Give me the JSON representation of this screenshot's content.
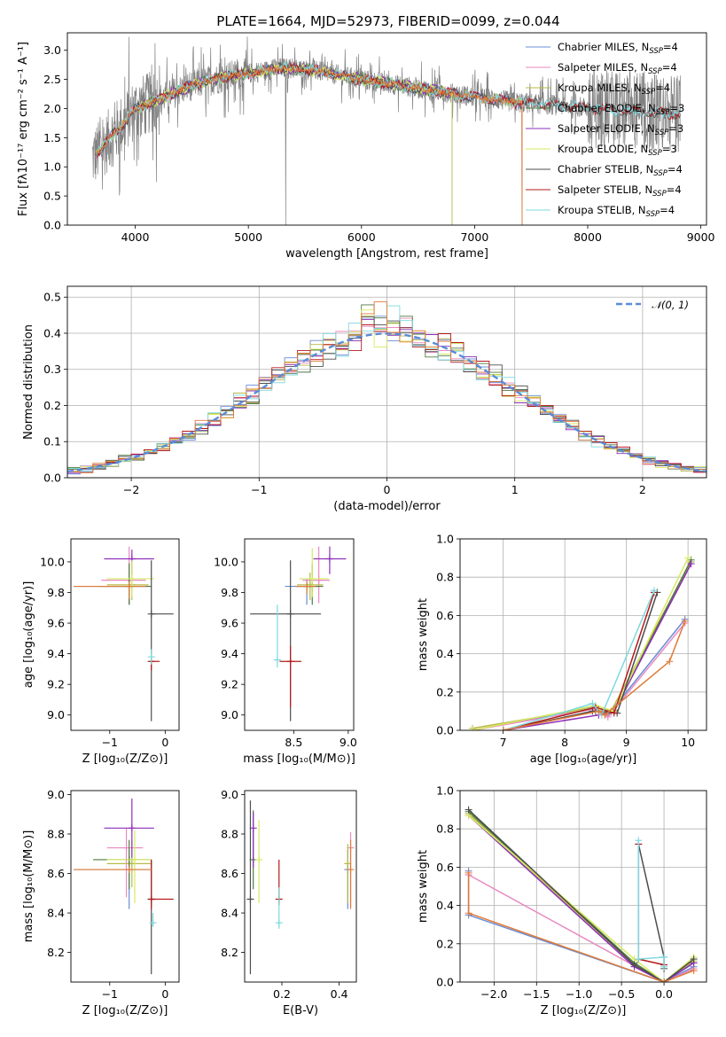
{
  "title": "PLATE=1664, MJD=52973, FIBERID=0099, z=0.044",
  "colors": {
    "chabrier_miles": "#6a8cd6",
    "salpeter_miles": "#e98ac1",
    "kroupa_miles": "#b9b94a",
    "chabrier_elodie": "#4f7a3f",
    "salpeter_elodie": "#8e2fb8",
    "kroupa_elodie": "#d6ea5f",
    "chabrier_stelib": "#4d4d4d",
    "salpeter_stelib": "#b31b1b",
    "kroupa_stelib": "#7fd8df",
    "data": "#808080",
    "orange": "#e07b39",
    "normal": "#5b8bd6"
  },
  "chart_data": [
    {
      "id": "spectrum",
      "type": "line",
      "xlabel": "wavelength [Angstrom, rest frame]",
      "ylabel": "Flux [fλ10⁻¹⁷ erg cm⁻² s⁻¹ A⁻¹]",
      "xlim": [
        3400,
        9050
      ],
      "ylim": [
        0,
        3.3
      ],
      "xticks": [
        4000,
        5000,
        6000,
        7000,
        8000,
        9000
      ],
      "yticks": [
        0.0,
        0.5,
        1.0,
        1.5,
        2.0,
        2.5,
        3.0
      ],
      "legend_position": "top-right",
      "legend": [
        {
          "text": "Chabrier MILES, N",
          "sub": "SSP",
          "tail": "=4",
          "color": "chabrier_miles"
        },
        {
          "text": "Salpeter MILES, N",
          "sub": "SSP",
          "tail": "=4",
          "color": "salpeter_miles"
        },
        {
          "text": "Kroupa MILES, N",
          "sub": "SSP",
          "tail": "=4",
          "color": "kroupa_miles"
        },
        {
          "text": "Chabrier ELODIE, N",
          "sub": "SSP",
          "tail": "=3",
          "color": "chabrier_elodie"
        },
        {
          "text": "Salpeter ELODIE, N",
          "sub": "SSP",
          "tail": "=3",
          "color": "salpeter_elodie"
        },
        {
          "text": "Kroupa ELODIE, N",
          "sub": "SSP",
          "tail": "=3",
          "color": "kroupa_elodie"
        },
        {
          "text": "Chabrier STELIB, N",
          "sub": "SSP",
          "tail": "=4",
          "color": "chabrier_stelib"
        },
        {
          "text": "Salpeter STELIB, N",
          "sub": "SSP",
          "tail": "=4",
          "color": "salpeter_stelib"
        },
        {
          "text": "Kroupa STELIB, N",
          "sub": "SSP",
          "tail": "=4",
          "color": "kroupa_stelib"
        }
      ],
      "continuum": [
        [
          3620,
          1.15
        ],
        [
          3700,
          1.3
        ],
        [
          3800,
          1.55
        ],
        [
          3900,
          1.75
        ],
        [
          4000,
          2.0
        ],
        [
          4200,
          2.15
        ],
        [
          4500,
          2.4
        ],
        [
          4800,
          2.55
        ],
        [
          5000,
          2.6
        ],
        [
          5300,
          2.7
        ],
        [
          5600,
          2.65
        ],
        [
          6000,
          2.5
        ],
        [
          6500,
          2.35
        ],
        [
          7000,
          2.2
        ],
        [
          7400,
          2.1
        ],
        [
          7800,
          2.05
        ],
        [
          8200,
          1.98
        ],
        [
          8600,
          1.93
        ],
        [
          8800,
          1.9
        ]
      ]
    },
    {
      "id": "residuals",
      "type": "step",
      "xlabel": "(data-model)/error",
      "ylabel": "Normed distribution",
      "xlim": [
        -2.5,
        2.5
      ],
      "ylim": [
        0,
        0.53
      ],
      "xticks": [
        -2,
        -1,
        0,
        1,
        2
      ],
      "yticks": [
        0.0,
        0.1,
        0.2,
        0.3,
        0.4,
        0.5
      ],
      "legend": "𝒩(0, 1)",
      "legend_position": "top-right",
      "bin_width": 0.1,
      "grid": true
    },
    {
      "id": "age_vs_Z",
      "type": "errorbar",
      "xlabel": "Z [log₁₀(Z/Z⊙)]",
      "ylabel": "age  [log₁₀(age/yr)]",
      "xlim": [
        -1.7,
        0.25
      ],
      "ylim": [
        8.9,
        10.15
      ],
      "xticks": [
        -1,
        0
      ],
      "yticks": [
        9.0,
        9.2,
        9.4,
        9.6,
        9.8,
        10.0
      ],
      "points": [
        {
          "c": "chabrier_miles",
          "x": -0.65,
          "y": 9.84,
          "xl": 1.0,
          "xh": 0.35,
          "yl": 0.12,
          "yh": 0.05
        },
        {
          "c": "salpeter_miles",
          "x": -0.65,
          "y": 9.88,
          "xl": 0.5,
          "xh": 0.3,
          "yl": 0.15,
          "yh": 0.22
        },
        {
          "c": "kroupa_miles",
          "x": -0.6,
          "y": 9.85,
          "xl": 0.45,
          "xh": 0.3,
          "yl": 0.1,
          "yh": 0.08
        },
        {
          "c": "chabrier_elodie",
          "x": -0.65,
          "y": 9.84,
          "xl": 0.55,
          "xh": 0.4,
          "yl": 0.12,
          "yh": 0.15
        },
        {
          "c": "salpeter_elodie",
          "x": -0.6,
          "y": 10.02,
          "xl": 0.5,
          "xh": 0.4,
          "yl": 0.1,
          "yh": 0.06
        },
        {
          "c": "kroupa_elodie",
          "x": -0.6,
          "y": 9.89,
          "xl": 0.45,
          "xh": 0.4,
          "yl": 0.12,
          "yh": 0.12
        },
        {
          "c": "chabrier_stelib",
          "x": -0.25,
          "y": 9.66,
          "xl": 0.0,
          "xh": 0.4,
          "yl": 0.7,
          "yh": 0.35
        },
        {
          "c": "salpeter_stelib",
          "x": -0.25,
          "y": 9.35,
          "xl": 0.0,
          "xh": 0.15,
          "yl": 0.06,
          "yh": 0.03
        },
        {
          "c": "kroupa_stelib",
          "x": -0.25,
          "y": 9.38,
          "xl": 0.0,
          "xh": 0.0,
          "yl": 0.05,
          "yh": 0.05
        },
        {
          "c": "orange",
          "x": -0.65,
          "y": 9.84,
          "xl": 1.0,
          "xh": 0.3,
          "yl": 0.08,
          "yh": 0.03
        }
      ]
    },
    {
      "id": "age_vs_mass",
      "type": "errorbar",
      "xlabel": "mass [log₁₀(M/M⊙)]",
      "ylabel": "",
      "xlim": [
        8.05,
        9.05
      ],
      "ylim": [
        8.9,
        10.15
      ],
      "xticks": [
        8.5,
        9.0
      ],
      "yticks": [
        9.0,
        9.2,
        9.4,
        9.6,
        9.8,
        10.0
      ],
      "points": [
        {
          "c": "chabrier_miles",
          "x": 8.62,
          "y": 9.84,
          "xl": 0.2,
          "xh": 0.1,
          "yl": 0.12,
          "yh": 0.05
        },
        {
          "c": "salpeter_miles",
          "x": 8.73,
          "y": 9.88,
          "xl": 0.15,
          "xh": 0.1,
          "yl": 0.15,
          "yh": 0.22
        },
        {
          "c": "kroupa_miles",
          "x": 8.65,
          "y": 9.85,
          "xl": 0.12,
          "xh": 0.12,
          "yl": 0.1,
          "yh": 0.08
        },
        {
          "c": "chabrier_elodie",
          "x": 8.67,
          "y": 9.84,
          "xl": 0.15,
          "xh": 0.1,
          "yl": 0.12,
          "yh": 0.15
        },
        {
          "c": "salpeter_elodie",
          "x": 8.83,
          "y": 10.02,
          "xl": 0.15,
          "xh": 0.15,
          "yl": 0.1,
          "yh": 0.08
        },
        {
          "c": "kroupa_elodie",
          "x": 8.67,
          "y": 9.89,
          "xl": 0.12,
          "xh": 0.15,
          "yl": 0.12,
          "yh": 0.2
        },
        {
          "c": "chabrier_stelib",
          "x": 8.47,
          "y": 9.66,
          "xl": 0.37,
          "xh": 0.28,
          "yl": 0.7,
          "yh": 0.35
        },
        {
          "c": "salpeter_stelib",
          "x": 8.47,
          "y": 9.35,
          "xl": 0.1,
          "xh": 0.1,
          "yl": 0.3,
          "yh": 0.1
        },
        {
          "c": "kroupa_stelib",
          "x": 8.35,
          "y": 9.36,
          "xl": 0.03,
          "xh": 0.03,
          "yl": 0.05,
          "yh": 0.36
        },
        {
          "c": "orange",
          "x": 8.62,
          "y": 9.84,
          "xl": 0.1,
          "xh": 0.08,
          "yl": 0.05,
          "yh": 0.03
        }
      ]
    },
    {
      "id": "mass_weight_vs_age",
      "type": "line",
      "xlabel": "age  [log₁₀(age/yr)]",
      "ylabel": "mass weight",
      "xlim": [
        6.3,
        10.3
      ],
      "ylim": [
        0,
        1.0
      ],
      "xticks": [
        7,
        8,
        9,
        10
      ],
      "yticks": [
        0.0,
        0.2,
        0.4,
        0.6,
        0.8,
        1.0
      ],
      "grid": true,
      "series": [
        {
          "c": "chabrier_miles",
          "x": [
            6.5,
            8.45,
            8.7,
            9.95
          ],
          "y": [
            0.0,
            0.12,
            0.08,
            0.58
          ]
        },
        {
          "c": "salpeter_miles",
          "x": [
            6.5,
            8.45,
            8.7,
            9.95
          ],
          "y": [
            0.0,
            0.11,
            0.07,
            0.56
          ]
        },
        {
          "c": "kroupa_miles",
          "x": [
            6.5,
            8.5,
            8.75,
            10.05
          ],
          "y": [
            0.01,
            0.12,
            0.1,
            0.88
          ]
        },
        {
          "c": "chabrier_elodie",
          "x": [
            7.0,
            8.5,
            8.8,
            10.05
          ],
          "y": [
            0.0,
            0.1,
            0.1,
            0.89
          ]
        },
        {
          "c": "salpeter_elodie",
          "x": [
            7.0,
            8.55,
            8.8,
            10.05
          ],
          "y": [
            0.0,
            0.08,
            0.1,
            0.87
          ]
        },
        {
          "c": "kroupa_elodie",
          "x": [
            6.5,
            8.5,
            8.8,
            10.0
          ],
          "y": [
            0.0,
            0.13,
            0.1,
            0.9
          ]
        },
        {
          "c": "chabrier_stelib",
          "x": [
            7.0,
            8.45,
            8.85,
            9.5
          ],
          "y": [
            0.0,
            0.1,
            0.09,
            0.72
          ]
        },
        {
          "c": "salpeter_stelib",
          "x": [
            7.0,
            8.5,
            8.8,
            9.45
          ],
          "y": [
            0.0,
            0.12,
            0.09,
            0.72
          ]
        },
        {
          "c": "kroupa_stelib",
          "x": [
            7.0,
            8.45,
            8.6,
            9.45
          ],
          "y": [
            0.0,
            0.14,
            0.08,
            0.73
          ]
        },
        {
          "c": "orange",
          "x": [
            7.0,
            8.55,
            8.65,
            9.7,
            9.95
          ],
          "y": [
            0.0,
            0.1,
            0.08,
            0.36,
            0.57
          ]
        }
      ]
    },
    {
      "id": "mass_vs_Z",
      "type": "errorbar",
      "xlabel": "Z [log₁₀(Z/Z⊙)]",
      "ylabel": "mass [log₁₀(M/M⊙)]",
      "xlim": [
        -1.7,
        0.25
      ],
      "ylim": [
        8.05,
        9.02
      ],
      "xticks": [
        -1,
        0
      ],
      "yticks": [
        8.2,
        8.4,
        8.6,
        8.8,
        9.0
      ],
      "points": [
        {
          "c": "chabrier_miles",
          "x": -0.65,
          "y": 8.62,
          "xl": 1.0,
          "xh": 0.4,
          "yl": 0.2,
          "yh": 0.1
        },
        {
          "c": "salpeter_miles",
          "x": -0.7,
          "y": 8.73,
          "xl": 0.35,
          "xh": 0.3,
          "yl": 0.25,
          "yh": 0.1
        },
        {
          "c": "kroupa_miles",
          "x": -0.6,
          "y": 8.65,
          "xl": 0.45,
          "xh": 0.35,
          "yl": 0.12,
          "yh": 0.12
        },
        {
          "c": "chabrier_elodie",
          "x": -0.65,
          "y": 8.67,
          "xl": 0.65,
          "xh": 0.4,
          "yl": 0.15,
          "yh": 0.1
        },
        {
          "c": "salpeter_elodie",
          "x": -0.6,
          "y": 8.83,
          "xl": 0.5,
          "xh": 0.4,
          "yl": 0.15,
          "yh": 0.15
        },
        {
          "c": "kroupa_elodie",
          "x": -0.55,
          "y": 8.67,
          "xl": 0.5,
          "xh": 0.3,
          "yl": 0.22,
          "yh": 0.15
        },
        {
          "c": "chabrier_stelib",
          "x": -0.25,
          "y": 8.47,
          "xl": 0.0,
          "xh": 0.0,
          "yl": 0.38,
          "yh": 0.2
        },
        {
          "c": "salpeter_stelib",
          "x": -0.25,
          "y": 8.47,
          "xl": 0.0,
          "xh": 0.4,
          "yl": 0.05,
          "yh": 0.2
        },
        {
          "c": "kroupa_stelib",
          "x": -0.22,
          "y": 8.35,
          "xl": 0.05,
          "xh": 0.0,
          "yl": 0.02,
          "yh": 0.05
        },
        {
          "c": "orange",
          "x": -0.65,
          "y": 8.62,
          "xl": 1.0,
          "xh": 0.4,
          "yl": 0.0,
          "yh": 0.0
        }
      ]
    },
    {
      "id": "mass_vs_ebv",
      "type": "errorbar",
      "xlabel": "E(B-V)",
      "ylabel": "",
      "xlim": [
        0.07,
        0.46
      ],
      "ylim": [
        8.05,
        9.02
      ],
      "xticks": [
        0.2,
        0.4
      ],
      "yticks": [
        8.2,
        8.4,
        8.6,
        8.8,
        9.0
      ],
      "points": [
        {
          "c": "chabrier_miles",
          "x": 0.43,
          "y": 8.62,
          "xl": 0.0,
          "xh": 0.0,
          "yl": 0.2,
          "yh": 0.1
        },
        {
          "c": "salpeter_miles",
          "x": 0.44,
          "y": 8.73,
          "xl": 0.0,
          "xh": 0.0,
          "yl": 0.3,
          "yh": 0.08
        },
        {
          "c": "kroupa_miles",
          "x": 0.43,
          "y": 8.65,
          "xl": 0.0,
          "xh": 0.0,
          "yl": 0.2,
          "yh": 0.1
        },
        {
          "c": "chabrier_elodie",
          "x": 0.1,
          "y": 8.67,
          "xl": 0.0,
          "xh": 0.0,
          "yl": 0.15,
          "yh": 0.25
        },
        {
          "c": "salpeter_elodie",
          "x": 0.1,
          "y": 8.83,
          "xl": 0.0,
          "xh": 0.0,
          "yl": 0.2,
          "yh": 0.08
        },
        {
          "c": "kroupa_elodie",
          "x": 0.12,
          "y": 8.67,
          "xl": 0.0,
          "xh": 0.0,
          "yl": 0.22,
          "yh": 0.2
        },
        {
          "c": "chabrier_stelib",
          "x": 0.09,
          "y": 8.47,
          "xl": 0.0,
          "xh": 0.0,
          "yl": 0.38,
          "yh": 0.5
        },
        {
          "c": "salpeter_stelib",
          "x": 0.19,
          "y": 8.47,
          "xl": 0.0,
          "xh": 0.0,
          "yl": 0.03,
          "yh": 0.2
        },
        {
          "c": "kroupa_stelib",
          "x": 0.19,
          "y": 8.35,
          "xl": 0.0,
          "xh": 0.0,
          "yl": 0.03,
          "yh": 0.18
        },
        {
          "c": "orange",
          "x": 0.44,
          "y": 8.62,
          "xl": 0.0,
          "xh": 0.0,
          "yl": 0.2,
          "yh": 0.15
        }
      ]
    },
    {
      "id": "mass_weight_vs_Z",
      "type": "line",
      "xlabel": "Z [log₁₀(Z/Z⊙)]",
      "ylabel": "mass weight",
      "xlim": [
        -2.4,
        0.5
      ],
      "ylim": [
        0,
        1.0
      ],
      "xticks": [
        -2.0,
        -1.5,
        -1.0,
        -0.5,
        0.0
      ],
      "yticks": [
        0.0,
        0.2,
        0.4,
        0.6,
        0.8,
        1.0
      ],
      "grid": true,
      "series": [
        {
          "c": "chabrier_miles",
          "x": [
            -2.3,
            -2.3,
            0.0,
            0.35
          ],
          "y": [
            0.58,
            0.35,
            0.0,
            0.08
          ]
        },
        {
          "c": "salpeter_miles",
          "x": [
            -2.3,
            -2.3,
            0.0,
            0.35
          ],
          "y": [
            0.56,
            0.56,
            0.0,
            0.07
          ]
        },
        {
          "c": "kroupa_miles",
          "x": [
            -2.3,
            -0.35,
            0.0,
            0.35
          ],
          "y": [
            0.88,
            0.09,
            0.0,
            0.11
          ]
        },
        {
          "c": "chabrier_elodie",
          "x": [
            -2.3,
            -0.35,
            0.0,
            0.35
          ],
          "y": [
            0.89,
            0.1,
            0.0,
            0.1
          ]
        },
        {
          "c": "salpeter_elodie",
          "x": [
            -2.3,
            -0.35,
            0.0,
            0.35
          ],
          "y": [
            0.87,
            0.08,
            0.0,
            0.1
          ]
        },
        {
          "c": "kroupa_elodie",
          "x": [
            -2.3,
            -0.35,
            0.0,
            0.35
          ],
          "y": [
            0.87,
            0.12,
            0.0,
            0.13
          ]
        },
        {
          "c": "chabrier_stelib",
          "x": [
            -2.3,
            -0.35,
            0.0,
            0.35
          ],
          "y": [
            0.9,
            0.09,
            0.0,
            0.12
          ]
        },
        {
          "c": "chabrier_stelib",
          "x": [
            -0.3,
            0.0,
            0.0
          ],
          "y": [
            0.72,
            0.13,
            0.07
          ]
        },
        {
          "c": "salpeter_stelib",
          "x": [
            -0.3,
            -0.3,
            0.0
          ],
          "y": [
            0.72,
            0.12,
            0.09
          ]
        },
        {
          "c": "kroupa_stelib",
          "x": [
            -0.3,
            -0.3,
            0.0,
            0.0
          ],
          "y": [
            0.74,
            0.12,
            0.13,
            0.08
          ]
        },
        {
          "c": "orange",
          "x": [
            -2.3,
            -2.3,
            0.0,
            0.35
          ],
          "y": [
            0.57,
            0.36,
            0.0,
            0.06
          ]
        }
      ]
    }
  ]
}
